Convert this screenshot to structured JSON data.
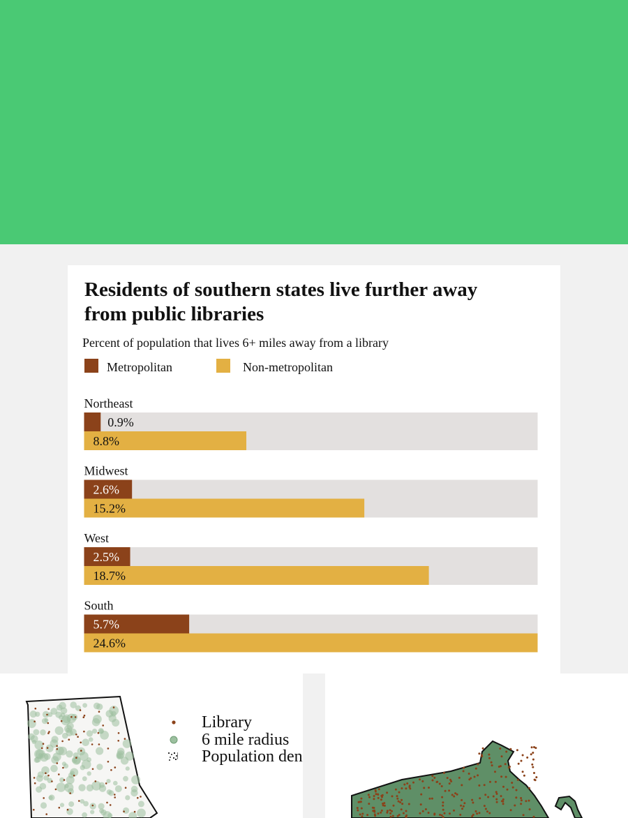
{
  "colors": {
    "hero": "#4ac974",
    "metropolitan": "#8b421a",
    "non_metropolitan": "#e3b043",
    "track": "#e3e0df",
    "map_fill": "#5f8f67",
    "library_dot": "#8b421a"
  },
  "chart_data": {
    "type": "bar",
    "orientation": "horizontal",
    "title": "Residents of southern states live further away from public libraries",
    "subtitle": "Percent of population that lives 6+ miles away from a library",
    "categories": [
      "Northeast",
      "Midwest",
      "West",
      "South"
    ],
    "series": [
      {
        "name": "Metropolitan",
        "values": [
          0.9,
          2.6,
          2.5,
          5.7
        ],
        "labels": [
          "0.9%",
          "2.6%",
          "2.5%",
          "5.7%"
        ]
      },
      {
        "name": "Non-metropolitan",
        "values": [
          8.8,
          15.2,
          18.7,
          24.6
        ],
        "labels": [
          "8.8%",
          "15.2%",
          "18.7%",
          "24.6%"
        ]
      }
    ],
    "xlim": [
      0,
      24.6
    ],
    "legend_position": "top-left",
    "grid": false
  },
  "map_legend": {
    "items": [
      {
        "label": "Library",
        "icon": "library-dot-icon"
      },
      {
        "label": "6 mile radius",
        "icon": "radius-circle-icon"
      },
      {
        "label": "Population den",
        "icon": "population-density-icon"
      }
    ]
  }
}
